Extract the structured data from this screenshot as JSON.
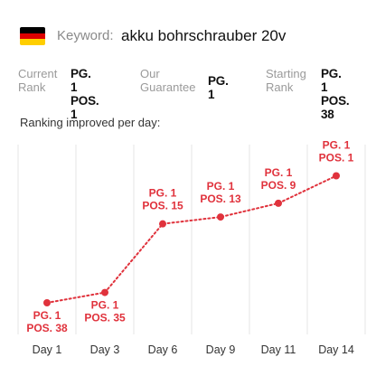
{
  "header": {
    "flag_icon": "germany-flag-icon",
    "flag_colors": [
      "#000000",
      "#dd0000",
      "#ffce00"
    ],
    "keyword_label": "Keyword:",
    "keyword_value": "akku bohrschrauber 20v"
  },
  "stats": {
    "current": {
      "label_line1": "Current",
      "label_line2": "Rank",
      "pg": "PG. 1",
      "pos": "POS. 1"
    },
    "guarantee": {
      "label_line1": "Our",
      "label_line2": "Guarantee",
      "value": "PG. 1"
    },
    "starting": {
      "label_line1": "Starting",
      "label_line2": "Rank",
      "pg": "PG. 1",
      "pos": "POS. 38"
    }
  },
  "chart_title": "Ranking improved per day:",
  "colors": {
    "accent": "#e0323c",
    "grid": "#e6e6e6"
  },
  "chart_data": {
    "type": "line",
    "categories": [
      "Day 1",
      "Day 3",
      "Day 6",
      "Day 9",
      "Day 11",
      "Day 14"
    ],
    "series": [
      {
        "values": [
          38,
          35,
          15,
          13,
          9,
          1
        ]
      }
    ],
    "point_labels": [
      [
        "PG. 1",
        "POS. 38"
      ],
      [
        "PG. 1",
        "POS. 35"
      ],
      [
        "PG. 1",
        "POS. 15"
      ],
      [
        "PG. 1",
        "POS. 13"
      ],
      [
        "PG. 1",
        "POS. 9"
      ],
      [
        "PG. 1",
        "POS. 1"
      ]
    ],
    "y_inverted": true,
    "line_style": "dotted",
    "grid": "vertical"
  }
}
